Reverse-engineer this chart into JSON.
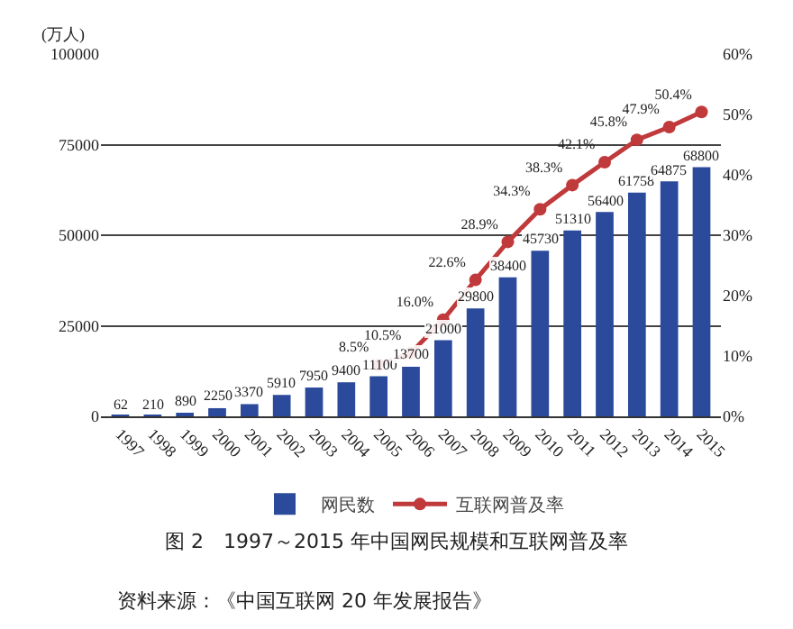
{
  "chart_data": {
    "type": "bar",
    "title": "图 2　1997～2015 年中国网民规模和互联网普及率",
    "ylabel": "(万人)",
    "annotations": [
      "资料来源：《中国互联网 20 年发展报告》"
    ],
    "categories": [
      "1997",
      "1998",
      "1999",
      "2000",
      "2001",
      "2002",
      "2003",
      "2004",
      "2005",
      "2006",
      "2007",
      "2008",
      "2009",
      "2010",
      "2011",
      "2012",
      "2013",
      "2014",
      "2015"
    ],
    "series": [
      {
        "name": "网民数",
        "color": "#2b4a9c",
        "values": [
          62,
          210,
          890,
          2250,
          3370,
          5910,
          7950,
          9400,
          11100,
          13700,
          21000,
          29800,
          38400,
          45730,
          51310,
          56400,
          61758,
          64875,
          68800
        ],
        "value_labels": [
          "62",
          "210",
          "890",
          "2250",
          "3370",
          "5910",
          "7950",
          "9400",
          "11100",
          "13700",
          "21000",
          "29800",
          "38400",
          "45730",
          "51310",
          "56400",
          "61758",
          "64875",
          "68800"
        ]
      },
      {
        "name": "互联网普及率",
        "type": "line",
        "axis": "y2",
        "color": "#c0393b",
        "marker": "circle",
        "values": [
          null,
          null,
          null,
          null,
          null,
          null,
          null,
          null,
          8.5,
          10.5,
          16.0,
          22.6,
          28.9,
          34.3,
          38.3,
          42.1,
          45.8,
          47.9,
          50.4
        ],
        "value_labels": [
          null,
          null,
          null,
          null,
          null,
          null,
          null,
          null,
          "8.5%",
          "10.5%",
          "16.0%",
          "22.6%",
          "28.9%",
          "34.3%",
          "38.3%",
          "42.1%",
          "45.8%",
          "47.9%",
          "50.4%"
        ]
      }
    ],
    "ylim": [
      0,
      100000
    ],
    "yticks": [
      0,
      25000,
      50000,
      75000,
      100000
    ],
    "y2lim": [
      0,
      60
    ],
    "y2ticks": [
      {
        "value": 0,
        "label": "0%"
      },
      {
        "value": 10,
        "label": "10%"
      },
      {
        "value": 20,
        "label": "20%"
      },
      {
        "value": 30,
        "label": "30%"
      },
      {
        "value": 40,
        "label": "40%"
      },
      {
        "value": 50,
        "label": "50%"
      },
      {
        "value": 60,
        "label": "60%"
      }
    ],
    "grid": "y",
    "legend": "bottom"
  }
}
